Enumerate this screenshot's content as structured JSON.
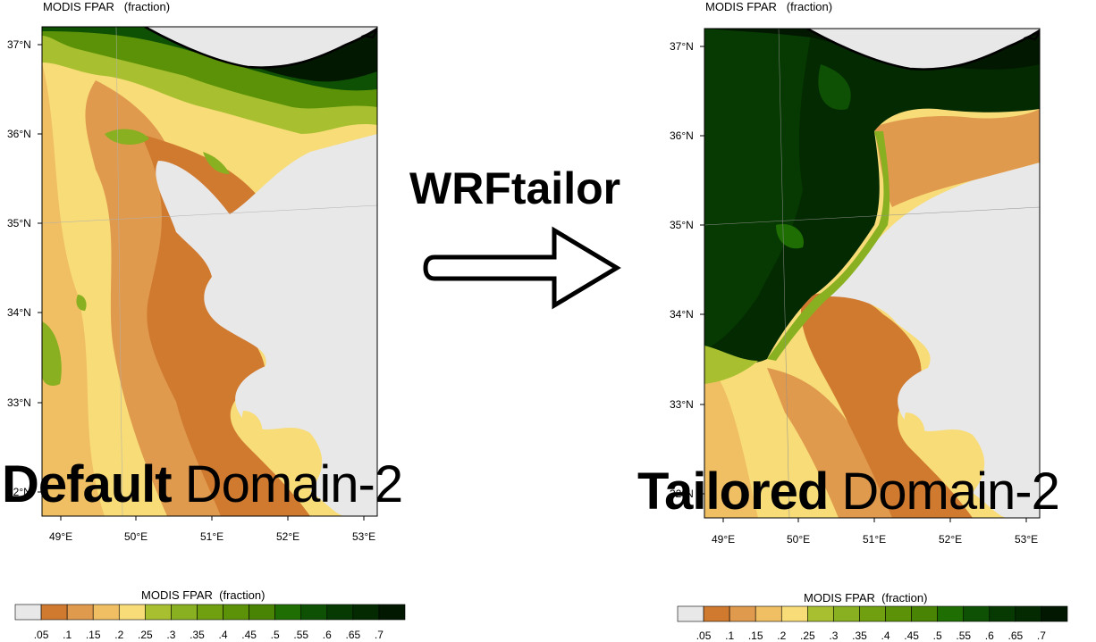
{
  "left_map": {
    "title": "MODIS FPAR   (fraction)",
    "lat_ticks": [
      "37°N",
      "36°N",
      "35°N",
      "34°N",
      "33°N",
      "32°N"
    ],
    "lon_ticks": [
      "49°E",
      "50°E",
      "51°E",
      "52°E",
      "53°E"
    ],
    "label_bold": "Default",
    "label_rest": " Domain-2"
  },
  "right_map": {
    "title": "MODIS FPAR   (fraction)",
    "lat_ticks": [
      "37°N",
      "36°N",
      "35°N",
      "34°N",
      "33°N",
      "32°N"
    ],
    "lon_ticks": [
      "49°E",
      "50°E",
      "51°E",
      "52°E",
      "53°E"
    ],
    "label_bold": "Tailored",
    "label_rest": " Domain-2"
  },
  "arrow_label": "WRFtailor",
  "colorbar": {
    "title": "MODIS FPAR  (fraction)",
    "labels": [
      ".05",
      ".1",
      ".15",
      ".2",
      ".25",
      ".3",
      ".35",
      ".4",
      ".45",
      ".5",
      ".55",
      ".6",
      ".65",
      ".7"
    ],
    "colors": [
      "#e8e8e8",
      "#d07a30",
      "#e09a4e",
      "#f0bf64",
      "#f8dc78",
      "#a8c030",
      "#88b020",
      "#70a010",
      "#5c9208",
      "#4a8404",
      "#1e6e04",
      "#0e5004",
      "#073a02",
      "#042a01",
      "#021800"
    ]
  }
}
